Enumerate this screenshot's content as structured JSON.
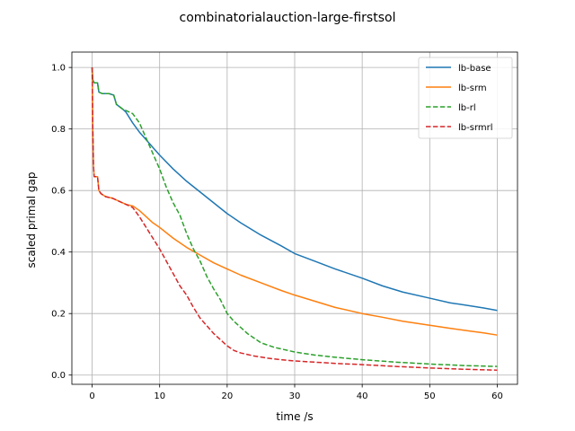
{
  "chart_data": {
    "type": "line",
    "title": "combinatorialauction-large-firstsol",
    "xlabel": "time /s",
    "ylabel": "scaled primal gap",
    "xlim": [
      -3,
      63
    ],
    "ylim": [
      -0.03,
      1.05
    ],
    "x_ticks": [
      0,
      10,
      20,
      30,
      40,
      50,
      60
    ],
    "x_tick_labels": [
      "0",
      "10",
      "20",
      "30",
      "40",
      "50",
      "60"
    ],
    "y_ticks": [
      0.0,
      0.2,
      0.4,
      0.6,
      0.8,
      1.0
    ],
    "y_tick_labels": [
      "0.0",
      "0.2",
      "0.4",
      "0.6",
      "0.8",
      "1.0"
    ],
    "grid": true,
    "legend_position": "top-right",
    "series": [
      {
        "name": "lb-base",
        "color": "#1f77b4",
        "dash": "solid",
        "points": [
          [
            0,
            1.0
          ],
          [
            0.1,
            0.96
          ],
          [
            0.3,
            0.95
          ],
          [
            0.8,
            0.95
          ],
          [
            1.0,
            0.92
          ],
          [
            1.5,
            0.915
          ],
          [
            2.5,
            0.915
          ],
          [
            3.2,
            0.91
          ],
          [
            3.6,
            0.88
          ],
          [
            4.5,
            0.865
          ],
          [
            5.0,
            0.855
          ],
          [
            6,
            0.82
          ],
          [
            7,
            0.79
          ],
          [
            8,
            0.765
          ],
          [
            9,
            0.74
          ],
          [
            10,
            0.715
          ],
          [
            12,
            0.67
          ],
          [
            14,
            0.63
          ],
          [
            16,
            0.595
          ],
          [
            18,
            0.56
          ],
          [
            20,
            0.525
          ],
          [
            22,
            0.495
          ],
          [
            25,
            0.455
          ],
          [
            28,
            0.42
          ],
          [
            30,
            0.395
          ],
          [
            33,
            0.37
          ],
          [
            36,
            0.345
          ],
          [
            40,
            0.315
          ],
          [
            43,
            0.29
          ],
          [
            46,
            0.27
          ],
          [
            50,
            0.25
          ],
          [
            53,
            0.235
          ],
          [
            56,
            0.225
          ],
          [
            58,
            0.218
          ],
          [
            60,
            0.21
          ]
        ]
      },
      {
        "name": "lb-srm",
        "color": "#ff7f0e",
        "dash": "solid",
        "points": [
          [
            0,
            1.0
          ],
          [
            0.1,
            0.8
          ],
          [
            0.2,
            0.68
          ],
          [
            0.3,
            0.645
          ],
          [
            0.8,
            0.645
          ],
          [
            1.0,
            0.6
          ],
          [
            1.3,
            0.59
          ],
          [
            2,
            0.58
          ],
          [
            3,
            0.575
          ],
          [
            4,
            0.565
          ],
          [
            5,
            0.555
          ],
          [
            6,
            0.55
          ],
          [
            7,
            0.535
          ],
          [
            8,
            0.515
          ],
          [
            9,
            0.495
          ],
          [
            10,
            0.48
          ],
          [
            12,
            0.445
          ],
          [
            14,
            0.415
          ],
          [
            16,
            0.39
          ],
          [
            18,
            0.365
          ],
          [
            20,
            0.345
          ],
          [
            22,
            0.325
          ],
          [
            25,
            0.3
          ],
          [
            28,
            0.275
          ],
          [
            30,
            0.26
          ],
          [
            33,
            0.24
          ],
          [
            36,
            0.22
          ],
          [
            40,
            0.2
          ],
          [
            43,
            0.188
          ],
          [
            46,
            0.175
          ],
          [
            50,
            0.162
          ],
          [
            53,
            0.152
          ],
          [
            56,
            0.143
          ],
          [
            58,
            0.137
          ],
          [
            60,
            0.13
          ]
        ]
      },
      {
        "name": "lb-rl",
        "color": "#2ca02c",
        "dash": "dashed",
        "points": [
          [
            0,
            1.0
          ],
          [
            0.1,
            0.96
          ],
          [
            0.3,
            0.95
          ],
          [
            0.8,
            0.95
          ],
          [
            1.0,
            0.92
          ],
          [
            1.5,
            0.915
          ],
          [
            2.5,
            0.915
          ],
          [
            3.2,
            0.91
          ],
          [
            3.6,
            0.88
          ],
          [
            4.5,
            0.865
          ],
          [
            5.0,
            0.86
          ],
          [
            6,
            0.85
          ],
          [
            7,
            0.82
          ],
          [
            8,
            0.77
          ],
          [
            9,
            0.72
          ],
          [
            10,
            0.67
          ],
          [
            11,
            0.61
          ],
          [
            12,
            0.56
          ],
          [
            13,
            0.52
          ],
          [
            14,
            0.46
          ],
          [
            15,
            0.41
          ],
          [
            16,
            0.37
          ],
          [
            17,
            0.32
          ],
          [
            18,
            0.28
          ],
          [
            19,
            0.245
          ],
          [
            20,
            0.2
          ],
          [
            21,
            0.175
          ],
          [
            22,
            0.155
          ],
          [
            23,
            0.135
          ],
          [
            24,
            0.12
          ],
          [
            25,
            0.105
          ],
          [
            27,
            0.09
          ],
          [
            30,
            0.075
          ],
          [
            33,
            0.065
          ],
          [
            36,
            0.058
          ],
          [
            40,
            0.05
          ],
          [
            45,
            0.042
          ],
          [
            50,
            0.036
          ],
          [
            55,
            0.031
          ],
          [
            60,
            0.028
          ]
        ]
      },
      {
        "name": "lb-srmrl",
        "color": "#d62728",
        "dash": "dashed",
        "points": [
          [
            0,
            1.0
          ],
          [
            0.1,
            0.8
          ],
          [
            0.2,
            0.68
          ],
          [
            0.3,
            0.645
          ],
          [
            0.8,
            0.645
          ],
          [
            1.0,
            0.6
          ],
          [
            1.3,
            0.59
          ],
          [
            2,
            0.58
          ],
          [
            3,
            0.575
          ],
          [
            4,
            0.565
          ],
          [
            5,
            0.555
          ],
          [
            6,
            0.545
          ],
          [
            7,
            0.515
          ],
          [
            8,
            0.48
          ],
          [
            9,
            0.445
          ],
          [
            10,
            0.41
          ],
          [
            11,
            0.37
          ],
          [
            12,
            0.33
          ],
          [
            13,
            0.29
          ],
          [
            14,
            0.26
          ],
          [
            15,
            0.22
          ],
          [
            16,
            0.185
          ],
          [
            17,
            0.16
          ],
          [
            18,
            0.135
          ],
          [
            19,
            0.115
          ],
          [
            20,
            0.095
          ],
          [
            21,
            0.08
          ],
          [
            22,
            0.072
          ],
          [
            24,
            0.062
          ],
          [
            26,
            0.055
          ],
          [
            28,
            0.05
          ],
          [
            30,
            0.046
          ],
          [
            33,
            0.042
          ],
          [
            36,
            0.038
          ],
          [
            40,
            0.034
          ],
          [
            45,
            0.028
          ],
          [
            50,
            0.023
          ],
          [
            55,
            0.019
          ],
          [
            60,
            0.016
          ]
        ]
      }
    ]
  }
}
